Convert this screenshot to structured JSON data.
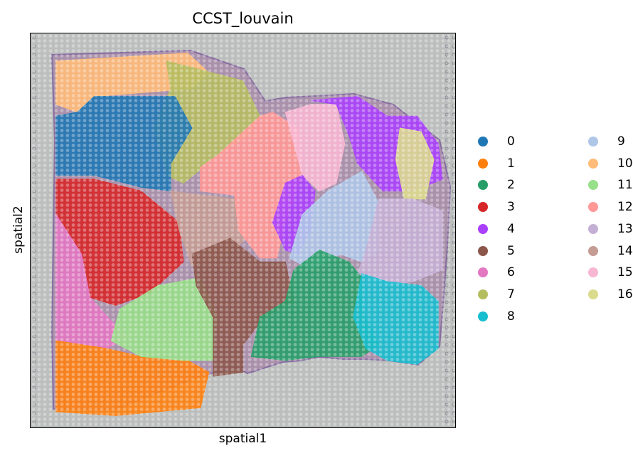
{
  "chart_data": {
    "type": "scatter",
    "title": "CCST_louvain",
    "xlabel": "spatial1",
    "ylabel": "spatial2",
    "grid": false,
    "axes_ticks": false,
    "legend_placement": "right",
    "background_image": "tissue-section-histology",
    "legend": [
      {
        "label": "0",
        "color": "#1f77b4"
      },
      {
        "label": "1",
        "color": "#ff7f0e"
      },
      {
        "label": "2",
        "color": "#279e68"
      },
      {
        "label": "3",
        "color": "#d62728"
      },
      {
        "label": "4",
        "color": "#aa40fc"
      },
      {
        "label": "5",
        "color": "#8c564b"
      },
      {
        "label": "6",
        "color": "#e377c2"
      },
      {
        "label": "7",
        "color": "#b5bd61"
      },
      {
        "label": "8",
        "color": "#17becf"
      },
      {
        "label": "9",
        "color": "#aec7e8"
      },
      {
        "label": "10",
        "color": "#ffbb78"
      },
      {
        "label": "11",
        "color": "#98df8a"
      },
      {
        "label": "12",
        "color": "#ff9896"
      },
      {
        "label": "13",
        "color": "#c5b0d5"
      },
      {
        "label": "14",
        "color": "#c49c94"
      },
      {
        "label": "15",
        "color": "#f7b6d2"
      },
      {
        "label": "16",
        "color": "#dbdb8d"
      }
    ],
    "regions": [
      {
        "cluster": "10",
        "points": [
          [
            0.06,
            0.07
          ],
          [
            0.37,
            0.05
          ],
          [
            0.42,
            0.1
          ],
          [
            0.38,
            0.14
          ],
          [
            0.15,
            0.16
          ],
          [
            0.11,
            0.2
          ],
          [
            0.06,
            0.18
          ]
        ]
      },
      {
        "cluster": "7",
        "points": [
          [
            0.32,
            0.07
          ],
          [
            0.5,
            0.12
          ],
          [
            0.54,
            0.21
          ],
          [
            0.51,
            0.26
          ],
          [
            0.44,
            0.31
          ],
          [
            0.36,
            0.38
          ],
          [
            0.32,
            0.36
          ],
          [
            0.29,
            0.24
          ],
          [
            0.33,
            0.14
          ]
        ]
      },
      {
        "cluster": "0",
        "points": [
          [
            0.06,
            0.21
          ],
          [
            0.11,
            0.2
          ],
          [
            0.15,
            0.16
          ],
          [
            0.34,
            0.16
          ],
          [
            0.38,
            0.24
          ],
          [
            0.33,
            0.33
          ],
          [
            0.33,
            0.4
          ],
          [
            0.26,
            0.39
          ],
          [
            0.15,
            0.36
          ],
          [
            0.06,
            0.36
          ]
        ]
      },
      {
        "cluster": "3",
        "points": [
          [
            0.06,
            0.37
          ],
          [
            0.15,
            0.37
          ],
          [
            0.26,
            0.4
          ],
          [
            0.35,
            0.48
          ],
          [
            0.36,
            0.58
          ],
          [
            0.28,
            0.66
          ],
          [
            0.2,
            0.69
          ],
          [
            0.14,
            0.67
          ],
          [
            0.12,
            0.56
          ],
          [
            0.06,
            0.46
          ]
        ]
      },
      {
        "cluster": "6",
        "points": [
          [
            0.06,
            0.46
          ],
          [
            0.12,
            0.56
          ],
          [
            0.14,
            0.67
          ],
          [
            0.19,
            0.73
          ],
          [
            0.23,
            0.77
          ],
          [
            0.18,
            0.8
          ],
          [
            0.06,
            0.78
          ]
        ]
      },
      {
        "cluster": "1",
        "points": [
          [
            0.06,
            0.78
          ],
          [
            0.18,
            0.8
          ],
          [
            0.26,
            0.82
          ],
          [
            0.37,
            0.83
          ],
          [
            0.42,
            0.86
          ],
          [
            0.4,
            0.95
          ],
          [
            0.2,
            0.97
          ],
          [
            0.06,
            0.96
          ]
        ]
      },
      {
        "cluster": "11",
        "points": [
          [
            0.21,
            0.7
          ],
          [
            0.3,
            0.64
          ],
          [
            0.4,
            0.62
          ],
          [
            0.44,
            0.72
          ],
          [
            0.43,
            0.83
          ],
          [
            0.36,
            0.83
          ],
          [
            0.26,
            0.82
          ],
          [
            0.19,
            0.78
          ]
        ]
      },
      {
        "cluster": "14",
        "points": [
          [
            0.33,
            0.4
          ],
          [
            0.4,
            0.41
          ],
          [
            0.48,
            0.42
          ],
          [
            0.52,
            0.5
          ],
          [
            0.49,
            0.54
          ],
          [
            0.43,
            0.58
          ],
          [
            0.38,
            0.59
          ],
          [
            0.35,
            0.5
          ]
        ]
      },
      {
        "cluster": "5",
        "points": [
          [
            0.38,
            0.56
          ],
          [
            0.47,
            0.52
          ],
          [
            0.54,
            0.58
          ],
          [
            0.6,
            0.58
          ],
          [
            0.62,
            0.68
          ],
          [
            0.55,
            0.72
          ],
          [
            0.5,
            0.79
          ],
          [
            0.5,
            0.86
          ],
          [
            0.43,
            0.87
          ],
          [
            0.43,
            0.72
          ],
          [
            0.39,
            0.64
          ]
        ]
      },
      {
        "cluster": "12",
        "points": [
          [
            0.44,
            0.31
          ],
          [
            0.54,
            0.21
          ],
          [
            0.57,
            0.2
          ],
          [
            0.63,
            0.24
          ],
          [
            0.64,
            0.36
          ],
          [
            0.6,
            0.48
          ],
          [
            0.58,
            0.57
          ],
          [
            0.54,
            0.57
          ],
          [
            0.49,
            0.5
          ],
          [
            0.48,
            0.41
          ],
          [
            0.4,
            0.4
          ],
          [
            0.4,
            0.34
          ]
        ]
      },
      {
        "cluster": "15",
        "points": [
          [
            0.6,
            0.2
          ],
          [
            0.66,
            0.18
          ],
          [
            0.72,
            0.18
          ],
          [
            0.74,
            0.28
          ],
          [
            0.72,
            0.38
          ],
          [
            0.68,
            0.4
          ],
          [
            0.64,
            0.36
          ]
        ]
      },
      {
        "cluster": "4",
        "points": [
          [
            0.66,
            0.17
          ],
          [
            0.77,
            0.16
          ],
          [
            0.84,
            0.21
          ],
          [
            0.91,
            0.21
          ],
          [
            0.96,
            0.28
          ],
          [
            0.97,
            0.37
          ],
          [
            0.9,
            0.4
          ],
          [
            0.83,
            0.4
          ],
          [
            0.77,
            0.33
          ],
          [
            0.75,
            0.26
          ],
          [
            0.72,
            0.18
          ]
        ]
      },
      {
        "cluster": "4",
        "points": [
          [
            0.6,
            0.38
          ],
          [
            0.64,
            0.36
          ],
          [
            0.67,
            0.4
          ],
          [
            0.66,
            0.5
          ],
          [
            0.63,
            0.56
          ],
          [
            0.6,
            0.55
          ],
          [
            0.57,
            0.48
          ]
        ]
      },
      {
        "cluster": "16",
        "points": [
          [
            0.87,
            0.24
          ],
          [
            0.92,
            0.25
          ],
          [
            0.95,
            0.32
          ],
          [
            0.93,
            0.42
          ],
          [
            0.88,
            0.42
          ],
          [
            0.86,
            0.32
          ]
        ]
      },
      {
        "cluster": "9",
        "points": [
          [
            0.64,
            0.46
          ],
          [
            0.7,
            0.4
          ],
          [
            0.78,
            0.35
          ],
          [
            0.82,
            0.43
          ],
          [
            0.82,
            0.55
          ],
          [
            0.78,
            0.58
          ],
          [
            0.73,
            0.56
          ],
          [
            0.66,
            0.6
          ],
          [
            0.61,
            0.57
          ]
        ]
      },
      {
        "cluster": "13",
        "points": [
          [
            0.82,
            0.42
          ],
          [
            0.9,
            0.42
          ],
          [
            0.97,
            0.45
          ],
          [
            0.97,
            0.6
          ],
          [
            0.9,
            0.63
          ],
          [
            0.84,
            0.64
          ],
          [
            0.77,
            0.61
          ],
          [
            0.79,
            0.55
          ]
        ]
      },
      {
        "cluster": "2",
        "points": [
          [
            0.62,
            0.6
          ],
          [
            0.68,
            0.55
          ],
          [
            0.75,
            0.58
          ],
          [
            0.78,
            0.62
          ],
          [
            0.78,
            0.7
          ],
          [
            0.82,
            0.79
          ],
          [
            0.78,
            0.82
          ],
          [
            0.68,
            0.82
          ],
          [
            0.6,
            0.83
          ],
          [
            0.52,
            0.82
          ],
          [
            0.54,
            0.72
          ],
          [
            0.6,
            0.68
          ]
        ]
      },
      {
        "cluster": "8",
        "points": [
          [
            0.78,
            0.61
          ],
          [
            0.84,
            0.63
          ],
          [
            0.92,
            0.64
          ],
          [
            0.96,
            0.68
          ],
          [
            0.96,
            0.8
          ],
          [
            0.91,
            0.84
          ],
          [
            0.84,
            0.83
          ],
          [
            0.79,
            0.8
          ],
          [
            0.76,
            0.72
          ]
        ]
      }
    ]
  }
}
